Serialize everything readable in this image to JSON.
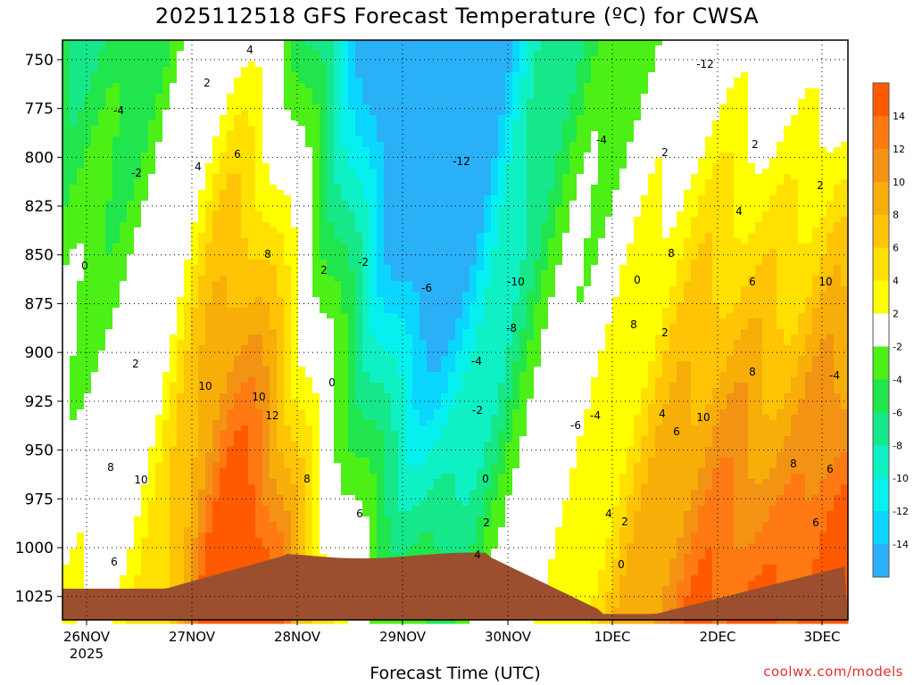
{
  "chart_data": {
    "type": "heatmap",
    "title": "2025112518 GFS Forecast Temperature (ºC) for CWSA",
    "xlabel": "Forecast Time (UTC)",
    "ylabel": "",
    "credit": "coolwx.com/models",
    "y_axis": {
      "ticks": [
        "750",
        "775",
        "800",
        "825",
        "850",
        "875",
        "900",
        "925",
        "950",
        "975",
        "1000",
        "1025"
      ],
      "range": [
        740,
        1037
      ],
      "inverted": true
    },
    "x_axis": {
      "ticks": [
        "26NOV",
        "27NOV",
        "28NOV",
        "29NOV",
        "30NOV",
        "1DEC",
        "2DEC",
        "3DEC"
      ],
      "year_label": "2025"
    },
    "colorbar": {
      "ticks": [
        "14",
        "12",
        "10",
        "8",
        "6",
        "4",
        "2",
        "-2",
        "-4",
        "-6",
        "-8",
        "-10",
        "-12",
        "-14"
      ],
      "bins": [
        {
          "range": [
            14,
            16
          ],
          "color": "#ff5a00"
        },
        {
          "range": [
            12,
            14
          ],
          "color": "#ff7a12"
        },
        {
          "range": [
            10,
            12
          ],
          "color": "#f39313"
        },
        {
          "range": [
            8,
            10
          ],
          "color": "#f7ae09"
        },
        {
          "range": [
            6,
            8
          ],
          "color": "#ffc406"
        },
        {
          "range": [
            4,
            6
          ],
          "color": "#ffe000"
        },
        {
          "range": [
            2,
            4
          ],
          "color": "#ffff00"
        },
        {
          "range": [
            -2,
            2
          ],
          "color": "#ffffff"
        },
        {
          "range": [
            -4,
            -2
          ],
          "color": "#4cf016"
        },
        {
          "range": [
            -6,
            -4
          ],
          "color": "#21e54c"
        },
        {
          "range": [
            -8,
            -6
          ],
          "color": "#16e789"
        },
        {
          "range": [
            -10,
            -8
          ],
          "color": "#0ff1c4"
        },
        {
          "range": [
            -12,
            -10
          ],
          "color": "#06f0f0"
        },
        {
          "range": [
            -14,
            -12
          ],
          "color": "#0ad6ff"
        },
        {
          "range": [
            -16,
            -14
          ],
          "color": "#2ab0f7"
        }
      ]
    },
    "ground_color": "#9b4f2e",
    "zero_contour_color": "#c0186e",
    "contour_labels": [
      "4",
      "2",
      "-4",
      "-2",
      "6",
      "4",
      "2",
      "8",
      "0",
      "10",
      "10",
      "12",
      "2",
      "0",
      "-2",
      "-6",
      "-12",
      "-10",
      "-8",
      "-4",
      "-2",
      "-6",
      "-4",
      "0",
      "2",
      "4",
      "6",
      "8",
      "10",
      "8",
      "6",
      "4",
      "2",
      "0",
      "2",
      "4",
      "6",
      "8",
      "-4",
      "2",
      "4",
      "6",
      "8",
      "10",
      "8",
      "6",
      "2",
      "0",
      "8",
      "10",
      "6",
      "-4",
      "-12",
      "2"
    ],
    "grid": true,
    "legend_position": "right"
  }
}
